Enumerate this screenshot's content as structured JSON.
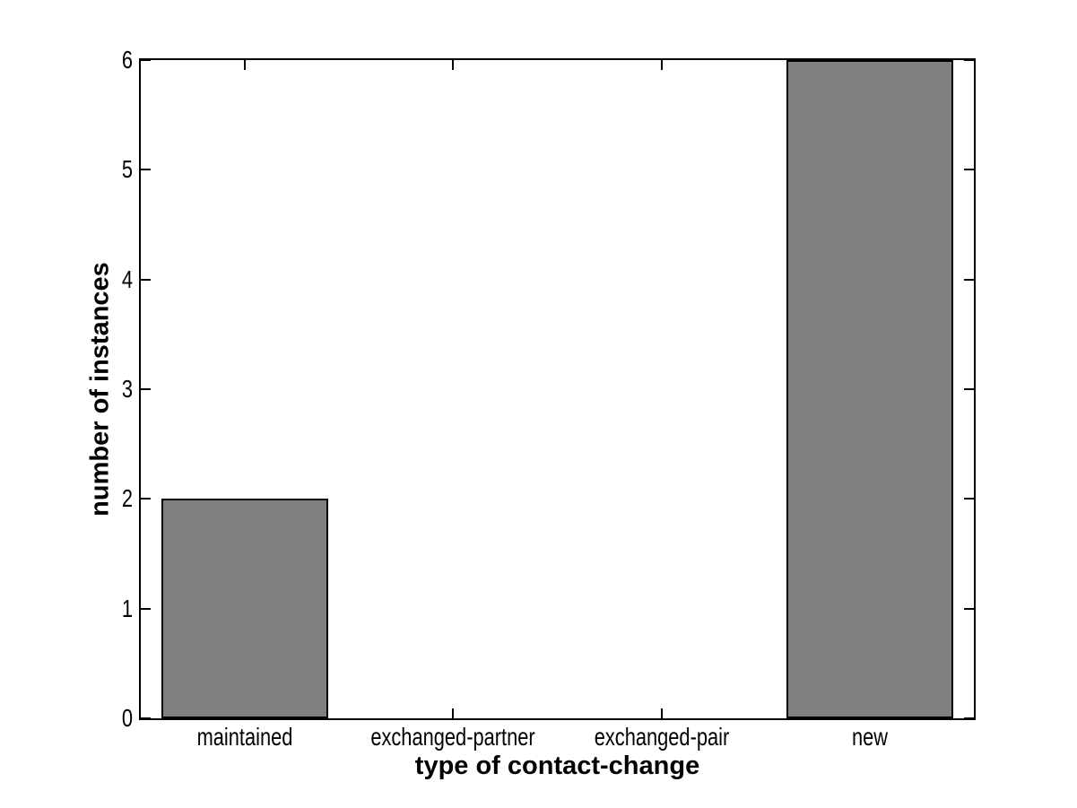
{
  "chart_data": {
    "type": "bar",
    "title": "",
    "categories": [
      "maintained",
      "exchanged-partner",
      "exchanged-pair",
      "new"
    ],
    "values": [
      2,
      0,
      0,
      6
    ],
    "xlabel": "type of contact-change",
    "ylabel": "number of instances",
    "xlim": [
      0.5,
      4.5
    ],
    "ylim": [
      0,
      6
    ],
    "yticks": [
      0,
      1,
      2,
      3,
      4,
      5,
      6
    ],
    "bar_width_fraction": 0.8,
    "bar_color": "#808080",
    "bar_edge_color": "#000000",
    "axis_color": "#000000",
    "background_color": "#ffffff",
    "grid": false,
    "legend": null
  }
}
